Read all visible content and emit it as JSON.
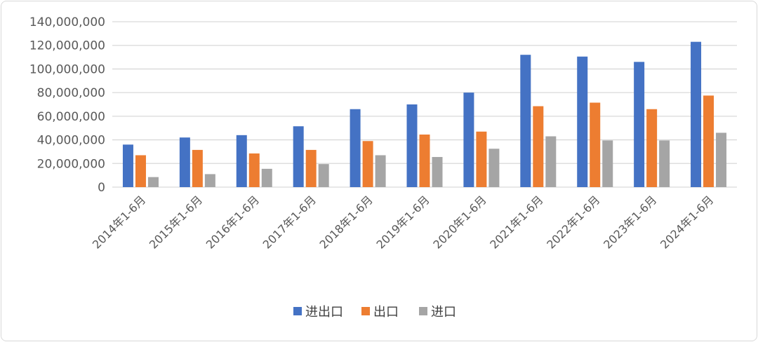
{
  "chart_data": {
    "type": "bar",
    "title": "",
    "xlabel": "",
    "ylabel": "",
    "ylim": [
      0,
      140000000
    ],
    "yticks": [
      0,
      20000000,
      40000000,
      60000000,
      80000000,
      100000000,
      120000000,
      140000000
    ],
    "ytick_labels": [
      "0",
      "20,000,000",
      "40,000,000",
      "60,000,000",
      "80,000,000",
      "100,000,000",
      "120,000,000",
      "140,000,000"
    ],
    "grid": true,
    "legend_position": "bottom",
    "categories": [
      "2014年1-6月",
      "2015年1-6月",
      "2016年1-6月",
      "2017年1-6月",
      "2018年1-6月",
      "2019年1-6月",
      "2020年1-6月",
      "2021年1-6月",
      "2022年1-6月",
      "2023年1-6月",
      "2024年1-6月"
    ],
    "series": [
      {
        "name": "进出口",
        "color": "#4472C4",
        "values": [
          36000000,
          42000000,
          44000000,
          51500000,
          66000000,
          70000000,
          80000000,
          112000000,
          110500000,
          106000000,
          123000000
        ]
      },
      {
        "name": "出口",
        "color": "#ED7D31",
        "values": [
          27000000,
          31500000,
          28500000,
          31500000,
          39000000,
          44500000,
          47000000,
          68500000,
          71500000,
          66000000,
          77500000
        ]
      },
      {
        "name": "进口",
        "color": "#A5A5A5",
        "values": [
          8500000,
          11000000,
          15500000,
          19500000,
          27000000,
          25500000,
          32500000,
          43000000,
          39500000,
          39500000,
          46000000
        ]
      }
    ]
  }
}
